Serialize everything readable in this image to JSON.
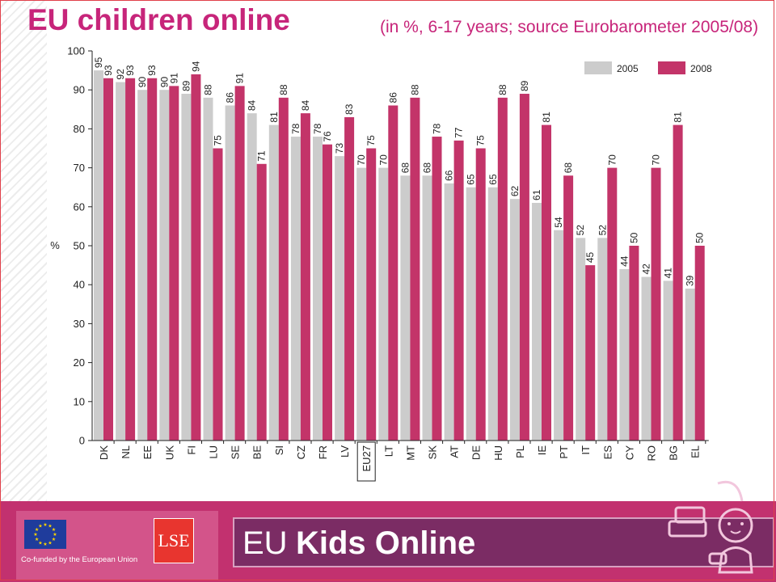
{
  "header": {
    "title": "EU children online",
    "subtitle": "(in %, 6-17 years; source Eurobarometer 2005/08)"
  },
  "footer": {
    "eu_caption": "Co-funded by the European Union",
    "lse_label": "LSE",
    "brand_prefix": "EU",
    "brand_name": "Kids Online"
  },
  "colors": {
    "series_2005": "#cccccc",
    "series_2008": "#c33469",
    "title": "#c7257a",
    "footer_bg": "#c2316f"
  },
  "chart_data": {
    "type": "bar",
    "categories": [
      "DK",
      "NL",
      "EE",
      "UK",
      "FI",
      "LU",
      "SE",
      "BE",
      "SI",
      "CZ",
      "FR",
      "LV",
      "EU27",
      "LT",
      "MT",
      "SK",
      "AT",
      "DE",
      "HU",
      "PL",
      "IE",
      "PT",
      "IT",
      "ES",
      "CY",
      "RO",
      "BG",
      "EL"
    ],
    "highlighted_category": "EU27",
    "series": [
      {
        "name": "2005",
        "values": [
          95,
          92,
          90,
          90,
          89,
          88,
          86,
          84,
          81,
          78,
          78,
          73,
          70,
          70,
          68,
          68,
          66,
          65,
          65,
          62,
          61,
          54,
          52,
          52,
          44,
          42,
          41,
          39
        ]
      },
      {
        "name": "2008",
        "values": [
          93,
          93,
          93,
          91,
          94,
          75,
          91,
          71,
          88,
          84,
          76,
          83,
          75,
          86,
          88,
          78,
          77,
          75,
          88,
          89,
          81,
          68,
          45,
          70,
          50,
          70,
          81,
          50
        ]
      }
    ],
    "ylabel": "%",
    "ylim": [
      0,
      100
    ],
    "yticks": [
      0,
      10,
      20,
      30,
      40,
      50,
      60,
      70,
      80,
      90,
      100
    ],
    "legend_position": "top-right",
    "data_labels": true,
    "grid": false
  }
}
